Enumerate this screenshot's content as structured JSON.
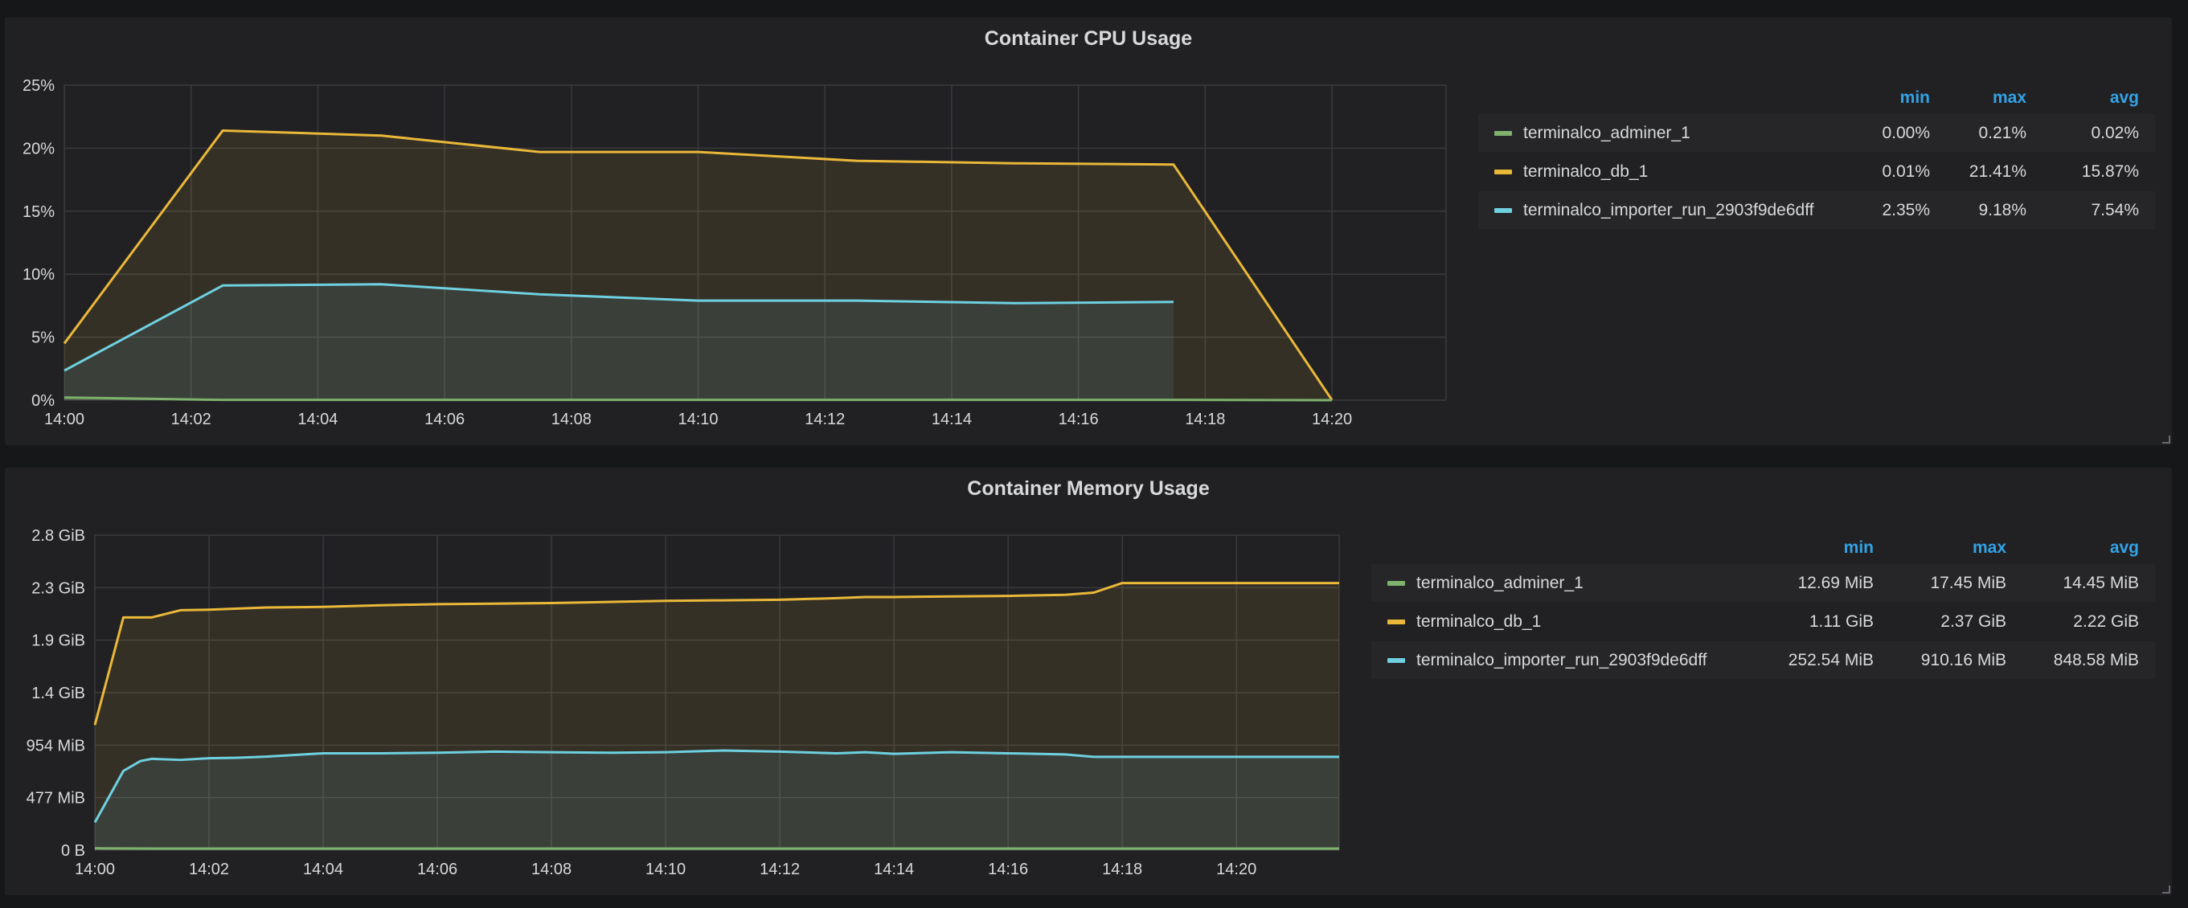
{
  "panels": [
    {
      "title": "Container CPU Usage",
      "legend": {
        "headers": [
          "min",
          "max",
          "avg"
        ],
        "rows": [
          {
            "name": "terminalco_adminer_1",
            "color": "#7eb26d",
            "min": "0.00%",
            "max": "0.21%",
            "avg": "0.02%"
          },
          {
            "name": "terminalco_db_1",
            "color": "#eab839",
            "min": "0.01%",
            "max": "21.41%",
            "avg": "15.87%"
          },
          {
            "name": "terminalco_importer_run_2903f9de6dff",
            "color": "#6ed0e0",
            "min": "2.35%",
            "max": "9.18%",
            "avg": "7.54%"
          }
        ]
      }
    },
    {
      "title": "Container Memory Usage",
      "legend": {
        "headers": [
          "min",
          "max",
          "avg"
        ],
        "rows": [
          {
            "name": "terminalco_adminer_1",
            "color": "#7eb26d",
            "min": "12.69 MiB",
            "max": "17.45 MiB",
            "avg": "14.45 MiB"
          },
          {
            "name": "terminalco_db_1",
            "color": "#eab839",
            "min": "1.11 GiB",
            "max": "2.37 GiB",
            "avg": "2.22 GiB"
          },
          {
            "name": "terminalco_importer_run_2903f9de6dff",
            "color": "#6ed0e0",
            "min": "252.54 MiB",
            "max": "910.16 MiB",
            "avg": "848.58 MiB"
          }
        ]
      }
    }
  ],
  "chart_data": [
    {
      "type": "area",
      "title": "Container CPU Usage",
      "xlabel": "",
      "ylabel": "",
      "x_unit": "minutes after 14:00",
      "xlim": [
        0,
        21.8
      ],
      "ylim": [
        0,
        25
      ],
      "x_ticks": [
        "14:00",
        "14:02",
        "14:04",
        "14:06",
        "14:08",
        "14:10",
        "14:12",
        "14:14",
        "14:16",
        "14:18",
        "14:20"
      ],
      "y_ticks": [
        "0%",
        "5%",
        "10%",
        "15%",
        "20%",
        "25%"
      ],
      "grid": true,
      "legend_position": "right",
      "series": [
        {
          "name": "terminalco_adminer_1",
          "color": "#7eb26d",
          "x": [
            0,
            2.5,
            5,
            7.5,
            10,
            12.5,
            15,
            17.5,
            20
          ],
          "y": [
            0.21,
            0.02,
            0.02,
            0.02,
            0.02,
            0.02,
            0.02,
            0.02,
            0.0
          ]
        },
        {
          "name": "terminalco_db_1",
          "color": "#eab839",
          "x": [
            0,
            2.5,
            5,
            7.5,
            10,
            12.5,
            15,
            17.5,
            20
          ],
          "y": [
            4.5,
            21.4,
            21.0,
            19.7,
            19.7,
            19.0,
            18.8,
            18.7,
            0.01
          ]
        },
        {
          "name": "terminalco_importer_run_2903f9de6dff",
          "color": "#6ed0e0",
          "x": [
            0,
            2.5,
            5,
            7.5,
            10,
            12.5,
            15,
            17.5
          ],
          "y": [
            2.35,
            9.1,
            9.2,
            8.4,
            7.9,
            7.9,
            7.7,
            7.8
          ]
        }
      ]
    },
    {
      "type": "area",
      "title": "Container Memory Usage",
      "xlabel": "",
      "ylabel": "",
      "x_unit": "minutes after 14:00",
      "y_unit": "MiB",
      "xlim": [
        0,
        21.8
      ],
      "ylim": [
        0,
        2862
      ],
      "x_ticks": [
        "14:00",
        "14:02",
        "14:04",
        "14:06",
        "14:08",
        "14:10",
        "14:12",
        "14:14",
        "14:16",
        "14:18",
        "14:20"
      ],
      "y_ticks": [
        "0 B",
        "477 MiB",
        "954 MiB",
        "1.4 GiB",
        "1.9 GiB",
        "2.3 GiB",
        "2.8 GiB"
      ],
      "grid": true,
      "legend_position": "right",
      "series": [
        {
          "name": "terminalco_adminer_1",
          "color": "#7eb26d",
          "x": [
            0,
            1,
            2,
            3,
            4,
            5,
            6,
            7,
            8,
            9,
            10,
            11,
            12,
            13,
            14,
            15,
            16,
            17,
            18,
            19,
            20,
            21,
            21.8
          ],
          "y": [
            17,
            15,
            15,
            14.5,
            14.5,
            14.5,
            14.5,
            14.5,
            14.5,
            14.5,
            14.5,
            14.5,
            14.5,
            14.5,
            14.5,
            14.5,
            14.5,
            14.5,
            14.5,
            14.5,
            14.5,
            14.5,
            14.5
          ]
        },
        {
          "name": "terminalco_db_1",
          "color": "#eab839",
          "x": [
            0,
            0.5,
            1,
            1.5,
            2,
            2.5,
            3,
            4,
            5,
            6,
            7,
            8,
            9,
            10,
            11,
            12,
            13,
            13.5,
            14,
            15,
            16,
            17,
            17.5,
            18,
            19,
            20,
            21,
            21.8
          ],
          "y": [
            1137,
            2115,
            2115,
            2180,
            2185,
            2195,
            2205,
            2210,
            2225,
            2235,
            2240,
            2245,
            2255,
            2265,
            2270,
            2275,
            2290,
            2300,
            2300,
            2305,
            2310,
            2320,
            2340,
            2427,
            2427,
            2427,
            2427,
            2427
          ]
        },
        {
          "name": "terminalco_importer_run_2903f9de6dff",
          "color": "#6ed0e0",
          "x": [
            0,
            0.5,
            0.8,
            1,
            1.5,
            2,
            2.5,
            3,
            4,
            5,
            6,
            7,
            8,
            9,
            10,
            11,
            12,
            13,
            13.5,
            14,
            15,
            16,
            17,
            17.5,
            18,
            19,
            20,
            21,
            21.8
          ],
          "y": [
            252,
            720,
            810,
            830,
            820,
            835,
            840,
            850,
            880,
            880,
            885,
            895,
            890,
            885,
            890,
            905,
            895,
            880,
            890,
            875,
            890,
            880,
            870,
            848,
            848,
            848,
            848,
            848,
            848
          ]
        }
      ]
    }
  ]
}
